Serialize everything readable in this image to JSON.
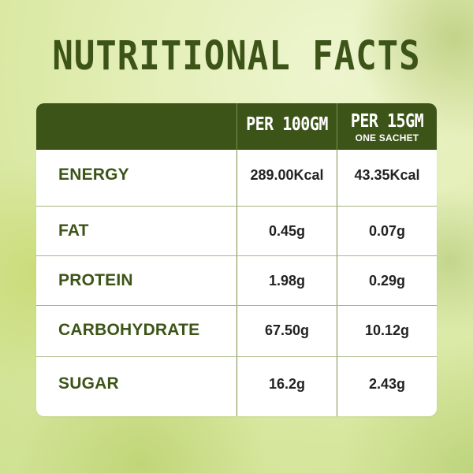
{
  "title": "NUTRITIONAL FACTS",
  "columns": [
    {
      "main": "PER 100GM",
      "sub": ""
    },
    {
      "main": "PER 15GM",
      "sub": "ONE SACHET"
    }
  ],
  "rows": [
    {
      "label": "ENERGY",
      "per_100gm": "289.00Kcal",
      "per_15gm": "43.35Kcal"
    },
    {
      "label": "FAT",
      "per_100gm": "0.45g",
      "per_15gm": "0.07g"
    },
    {
      "label": "PROTEIN",
      "per_100gm": "1.98g",
      "per_15gm": "0.29g"
    },
    {
      "label": "CARBOHYDRATE",
      "per_100gm": "67.50g",
      "per_15gm": "10.12g"
    },
    {
      "label": "SUGAR",
      "per_100gm": "16.2g",
      "per_15gm": "2.43g"
    }
  ],
  "colors": {
    "header_bg": "#3d5418",
    "label_text": "#3d5418",
    "value_text": "#222222",
    "background": "#dbe9a6"
  }
}
